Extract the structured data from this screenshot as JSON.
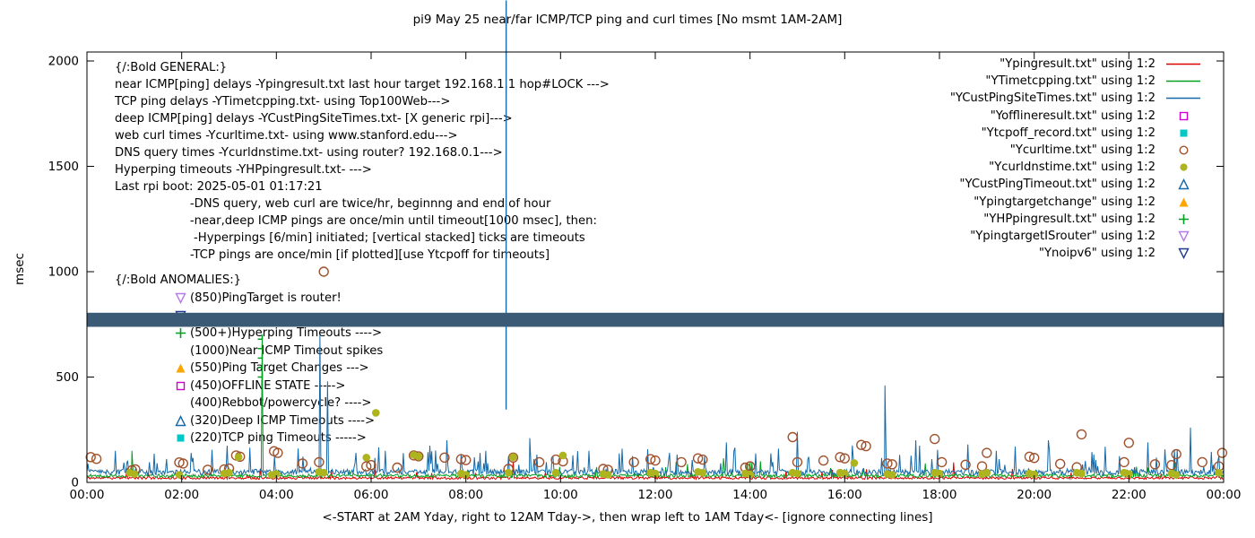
{
  "chart_data": {
    "type": "line",
    "title": "pi9 May 25  near/far ICMP/TCP ping and curl times [No msmt 1AM-2AM]",
    "ylabel": "msec",
    "xlabel": "<-START at 2AM Yday, right to 12AM Tday->, then wrap left to 1AM Tday<- [ignore connecting lines]",
    "ylim": [
      0,
      2000
    ],
    "xlim_hours": [
      0,
      24
    ],
    "yticks": [
      0,
      500,
      1000,
      1500,
      2000
    ],
    "xtick_labels": [
      "00:00",
      "02:00",
      "04:00",
      "06:00",
      "08:00",
      "10:00",
      "12:00",
      "14:00",
      "16:00",
      "18:00",
      "20:00",
      "22:00",
      "00:00"
    ],
    "grid": false,
    "legend_position": "top-right",
    "band": {
      "name": "Ynoipv6",
      "y_bottom": 738,
      "y_top": 805,
      "color": "#3b5a76"
    },
    "lines": [
      {
        "name": "Ypingresult",
        "color": "#dd0000",
        "base": 15,
        "jitter": 12,
        "spike_prob": 0.03,
        "spike_amp": 55,
        "seed": 11,
        "impulses": [
          [
            9.0,
            100
          ],
          [
            18.3,
            95
          ]
        ]
      },
      {
        "name": "YTimetcpping",
        "color": "#00a020",
        "base": 24,
        "jitter": 16,
        "spike_prob": 0.025,
        "spike_amp": 80,
        "seed": 22,
        "impulses": [
          [
            0.95,
            150
          ],
          [
            3.7,
            700
          ]
        ]
      },
      {
        "name": "YCustPingSiteTimes",
        "color": "#1569a8",
        "base": 36,
        "jitter": 26,
        "spike_prob": 0.1,
        "spike_amp": 120,
        "seed": 33,
        "impulses": [
          [
            0.6,
            150
          ],
          [
            2.2,
            140
          ],
          [
            4.92,
            700
          ],
          [
            5.08,
            480
          ],
          [
            6.3,
            150
          ],
          [
            7.6,
            200
          ],
          [
            8.3,
            140
          ],
          [
            9.35,
            210
          ],
          [
            10.6,
            150
          ],
          [
            11.3,
            160
          ],
          [
            12.3,
            140
          ],
          [
            13.5,
            190
          ],
          [
            14.6,
            160
          ],
          [
            15.0,
            240
          ],
          [
            16.85,
            460
          ],
          [
            17.5,
            200
          ],
          [
            18.6,
            180
          ],
          [
            19.2,
            150
          ],
          [
            20.3,
            200
          ],
          [
            21.5,
            170
          ],
          [
            22.4,
            190
          ],
          [
            23.3,
            260
          ]
        ]
      }
    ],
    "scatter": [
      {
        "name": "Ycurltime",
        "marker": "circle-open",
        "color": "#a0522d",
        "points": [
          [
            0.08,
            120
          ],
          [
            0.2,
            112
          ],
          [
            0.95,
            58
          ],
          [
            1.02,
            62
          ],
          [
            1.95,
            95
          ],
          [
            2.03,
            90
          ],
          [
            2.55,
            60
          ],
          [
            2.9,
            62
          ],
          [
            3.0,
            66
          ],
          [
            3.15,
            128
          ],
          [
            3.23,
            122
          ],
          [
            3.95,
            148
          ],
          [
            4.03,
            140
          ],
          [
            4.55,
            90
          ],
          [
            4.9,
            96
          ],
          [
            5.0,
            1000
          ],
          [
            5.9,
            76
          ],
          [
            6.0,
            82
          ],
          [
            6.55,
            70
          ],
          [
            6.9,
            128
          ],
          [
            7.0,
            124
          ],
          [
            7.55,
            118
          ],
          [
            7.9,
            110
          ],
          [
            8.0,
            106
          ],
          [
            8.9,
            64
          ],
          [
            9.0,
            118
          ],
          [
            9.55,
            96
          ],
          [
            9.9,
            108
          ],
          [
            10.05,
            100
          ],
          [
            10.9,
            64
          ],
          [
            11.0,
            60
          ],
          [
            11.55,
            96
          ],
          [
            11.9,
            110
          ],
          [
            12.0,
            104
          ],
          [
            12.55,
            96
          ],
          [
            12.9,
            114
          ],
          [
            13.0,
            108
          ],
          [
            13.9,
            70
          ],
          [
            14.0,
            76
          ],
          [
            14.9,
            215
          ],
          [
            15.0,
            96
          ],
          [
            15.55,
            104
          ],
          [
            15.9,
            120
          ],
          [
            16.0,
            114
          ],
          [
            16.35,
            178
          ],
          [
            16.45,
            172
          ],
          [
            16.9,
            90
          ],
          [
            17.0,
            86
          ],
          [
            17.9,
            206
          ],
          [
            18.05,
            96
          ],
          [
            18.55,
            84
          ],
          [
            18.9,
            76
          ],
          [
            19.0,
            140
          ],
          [
            19.9,
            122
          ],
          [
            20.0,
            116
          ],
          [
            20.55,
            88
          ],
          [
            20.9,
            72
          ],
          [
            21.0,
            228
          ],
          [
            21.9,
            96
          ],
          [
            22.0,
            188
          ],
          [
            22.55,
            86
          ],
          [
            22.9,
            82
          ],
          [
            23.0,
            134
          ],
          [
            23.55,
            96
          ],
          [
            23.9,
            76
          ],
          [
            23.97,
            140
          ]
        ]
      },
      {
        "name": "Ycurldnstime",
        "marker": "circle-filled",
        "color": "#adb41e",
        "points": [
          [
            0.9,
            46
          ],
          [
            1.0,
            40
          ],
          [
            1.95,
            36
          ],
          [
            2.9,
            42
          ],
          [
            3.0,
            46
          ],
          [
            3.2,
            120
          ],
          [
            3.9,
            36
          ],
          [
            4.0,
            40
          ],
          [
            4.9,
            50
          ],
          [
            5.0,
            46
          ],
          [
            5.9,
            118
          ],
          [
            6.1,
            330
          ],
          [
            6.9,
            130
          ],
          [
            7.0,
            124
          ],
          [
            7.9,
            42
          ],
          [
            8.0,
            36
          ],
          [
            8.9,
            46
          ],
          [
            9.0,
            120
          ],
          [
            9.9,
            46
          ],
          [
            10.05,
            128
          ],
          [
            10.9,
            40
          ],
          [
            11.0,
            36
          ],
          [
            11.9,
            46
          ],
          [
            12.0,
            42
          ],
          [
            12.9,
            50
          ],
          [
            13.0,
            46
          ],
          [
            13.9,
            42
          ],
          [
            14.0,
            38
          ],
          [
            14.9,
            46
          ],
          [
            15.0,
            42
          ],
          [
            15.9,
            46
          ],
          [
            16.0,
            42
          ],
          [
            16.2,
            92
          ],
          [
            16.9,
            40
          ],
          [
            17.0,
            36
          ],
          [
            17.9,
            46
          ],
          [
            18.0,
            42
          ],
          [
            18.9,
            40
          ],
          [
            19.0,
            46
          ],
          [
            19.9,
            42
          ],
          [
            20.0,
            38
          ],
          [
            20.9,
            46
          ],
          [
            21.0,
            42
          ],
          [
            21.9,
            46
          ],
          [
            22.0,
            40
          ],
          [
            22.9,
            42
          ],
          [
            23.0,
            36
          ],
          [
            23.9,
            46
          ]
        ]
      },
      {
        "name": "YCustPingTimeout",
        "marker": "triangle-open",
        "color": "#1569a8",
        "points": [
          [
            8.85,
            320
          ]
        ]
      },
      {
        "name": "YHPpingresult",
        "marker": "plus",
        "color": "#00a020",
        "points": [
          [
            3.7,
            500
          ],
          [
            3.7,
            545
          ],
          [
            3.7,
            590
          ],
          [
            3.7,
            635
          ],
          [
            3.7,
            680
          ]
        ]
      }
    ]
  },
  "legend": {
    "items": [
      {
        "label": "\"Ypingresult.txt\" using 1:2",
        "sample": "line",
        "color": "#dd0000"
      },
      {
        "label": "\"YTimetcpping.txt\" using 1:2",
        "sample": "line",
        "color": "#00a020"
      },
      {
        "label": "\"YCustPingSiteTimes.txt\" using 1:2",
        "sample": "line",
        "color": "#1569a8"
      },
      {
        "label": "\"Yofflineresult.txt\" using 1:2",
        "sample": "square-open",
        "color": "#cc00cc"
      },
      {
        "label": "\"Ytcpoff_record.txt\" using 1:2",
        "sample": "square-filled",
        "color": "#00c8c8"
      },
      {
        "label": "\"Ycurltime.txt\" using 1:2",
        "sample": "circle-open",
        "color": "#a0522d"
      },
      {
        "label": "\"Ycurldnstime.txt\" using 1:2",
        "sample": "circle-filled",
        "color": "#adb41e"
      },
      {
        "label": "\"YCustPingTimeout.txt\" using 1:2",
        "sample": "triangle-open",
        "color": "#1569a8"
      },
      {
        "label": "\"Ypingtargetchange\" using 1:2",
        "sample": "triangle-filled",
        "color": "#ffa500"
      },
      {
        "label": "\"YHPpingresult.txt\" using 1:2",
        "sample": "plus",
        "color": "#00a020"
      },
      {
        "label": "\"YpingtargetISrouter\" using 1:2",
        "sample": "triangle-down-open",
        "color": "#b57be6"
      },
      {
        "label": "\"Ynoipv6\" using 1:2",
        "sample": "triangle-down-open",
        "color": "#1e3a8a"
      }
    ]
  },
  "general": {
    "lines": [
      "{/:Bold GENERAL:}",
      "near ICMP[ping] delays -Ypingresult.txt last hour target 192.168.1.1 hop#LOCK --->",
      "TCP ping delays -YTimetcpping.txt- using Top100Web--->",
      "deep ICMP[ping] delays -YCustPingSiteTimes.txt- [X generic rpi]--->",
      "web curl times -Ycurltime.txt- using www.stanford.edu--->",
      "DNS query times -Ycurldnstime.txt- using router? 192.168.0.1--->",
      "Hyperping timeouts -YHPpingresult.txt- --->",
      "Last rpi boot: 2025-05-01 01:17:21",
      "                    -DNS query, web curl are twice/hr, beginnng and end of hour",
      "                    -near,deep ICMP pings are once/min until timeout[1000 msec], then:",
      "                     -Hyperpings [6/min] initiated; [vertical stacked] ticks are timeouts",
      "                    -TCP pings are once/min [if plotted][use Ytcpoff for timeouts]"
    ]
  },
  "anomalies": {
    "header": "{/:Bold ANOMALIES:}",
    "items": [
      {
        "marker": "triangle-down-open",
        "color": "#b57be6",
        "label": "(850)PingTarget is router!"
      },
      {
        "marker": "triangle-down-open",
        "color": "#1e3a8a",
        "label": ""
      },
      {
        "marker": "plus",
        "color": "#00a020",
        "label": "(500+)Hyperping Timeouts ---->"
      },
      {
        "marker": "none",
        "color": "",
        "label": "(1000)Near ICMP Timeout spikes"
      },
      {
        "marker": "triangle-filled",
        "color": "#ffa500",
        "label": "(550)Ping Target Changes --->"
      },
      {
        "marker": "square-open",
        "color": "#cc00cc",
        "label": "(450)OFFLINE STATE ----->"
      },
      {
        "marker": "none",
        "color": "",
        "label": "(400)Rebbot/powercycle? ---->"
      },
      {
        "marker": "triangle-open",
        "color": "#1569a8",
        "label": "(320)Deep ICMP Timeouts ---->"
      },
      {
        "marker": "square-filled",
        "color": "#00c8c8",
        "label": "(220)TCP ping Timeouts ----->"
      }
    ]
  }
}
